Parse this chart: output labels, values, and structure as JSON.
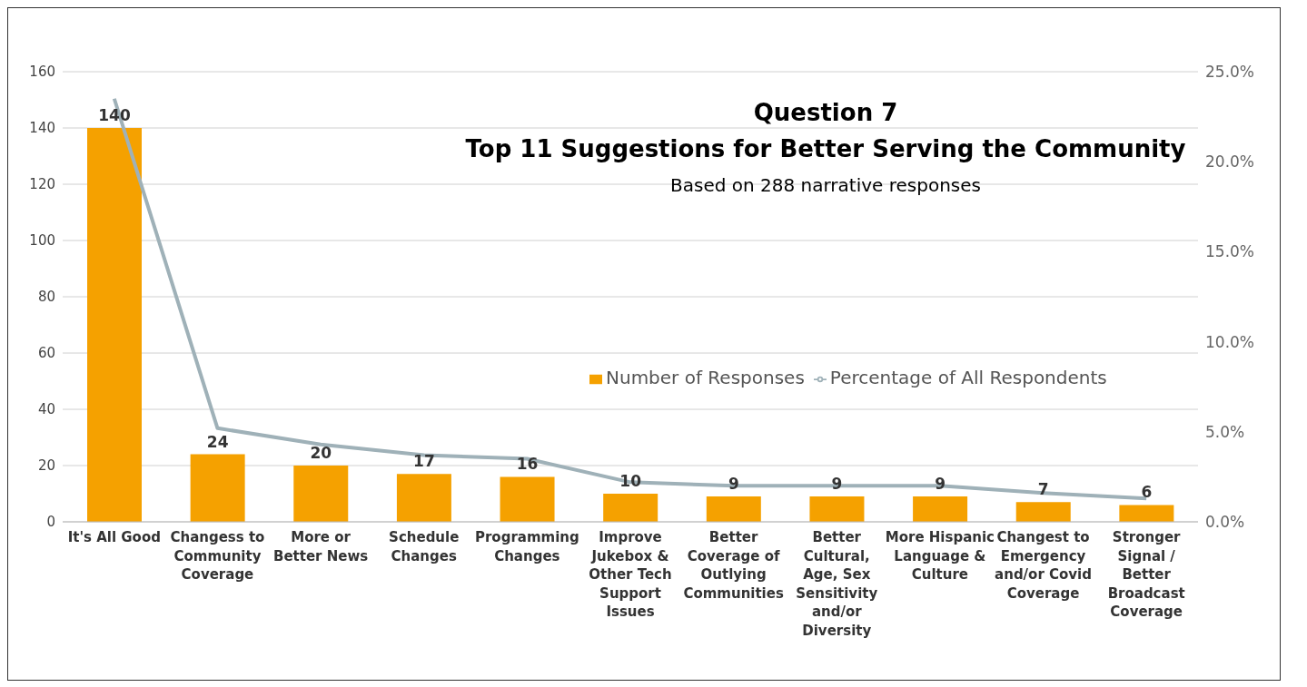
{
  "chart_data": {
    "type": "bar",
    "title": "Question 7\nTop 11 Suggestions for Better Serving the Community",
    "subtitle": "Based on 288 narrative responses",
    "categories": [
      "It's All Good",
      "Changess to Community Coverage",
      "More or Better News",
      "Schedule Changes",
      "Programming Changes",
      "Improve Jukebox & Other Tech Support Issues",
      "Better Coverage of Outlying Communities",
      "Better Cultural, Age, Sex Sensitivity and/or Diversity",
      "More Hispanic Language & Culture",
      "Changest to Emergency and/or Covid Coverage",
      "Stronger Signal / Better Broadcast Coverage"
    ],
    "series": [
      {
        "name": "Number of Responses",
        "color": "#f5a100",
        "values": [
          140,
          24,
          20,
          17,
          16,
          10,
          9,
          9,
          9,
          7,
          6
        ],
        "value_labels": [
          "140",
          "24",
          "20",
          "17",
          "16",
          "10",
          "9",
          "9",
          "9",
          "7",
          "6"
        ]
      },
      {
        "name": "Percentage of All Respondents",
        "type": "line",
        "axis": "y2",
        "color": "#9fb1b8",
        "values": [
          23.5,
          5.2,
          4.3,
          3.7,
          3.5,
          2.2,
          2.0,
          2.0,
          2.0,
          1.6,
          1.3
        ]
      }
    ],
    "ylim": [
      0,
      160
    ],
    "yticks": [
      0,
      20,
      40,
      60,
      80,
      100,
      120,
      140,
      160
    ],
    "y2lim": [
      0,
      25
    ],
    "y2ticks": [
      {
        "value": 0,
        "label": "0.0%"
      },
      {
        "value": 5,
        "label": "5.0%"
      },
      {
        "value": 10,
        "label": "10.0%"
      },
      {
        "value": 15,
        "label": "15.0%"
      },
      {
        "value": 20,
        "label": "20.0%"
      },
      {
        "value": 25,
        "label": "25.0%"
      }
    ],
    "grid": "y",
    "legend": "right",
    "marker": "none"
  }
}
